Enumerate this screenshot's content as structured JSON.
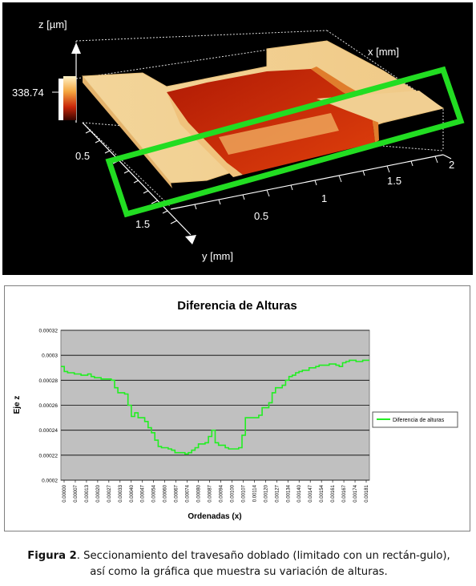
{
  "surface_plot": {
    "z_axis_label": "z [µm]",
    "x_axis_label": "x [mm]",
    "y_axis_label": "y [mm]",
    "colorbar_value": "338.74",
    "x_ticks": [
      "0.5",
      "1",
      "1.5",
      "2"
    ],
    "y_ticks": [
      "0.5",
      "1.5"
    ],
    "selection_color": "#22dd22"
  },
  "chart_data": {
    "type": "line",
    "title": "Diferencia de Alturas",
    "xlabel": "Ordenadas (x)",
    "ylabel": "Eje z",
    "ylim": [
      0.0002,
      0.00032
    ],
    "y_ticks": [
      "0.00032",
      "0.0003",
      "0.00028",
      "0.00026",
      "0.00024",
      "0.00022",
      "0.0002"
    ],
    "x_ticks": [
      "0.00000",
      "0.00007",
      "0.00013",
      "0.00020",
      "0.00027",
      "0.00033",
      "0.00040",
      "0.00047",
      "0.00054",
      "0.00060",
      "0.00067",
      "0.00074",
      "0.00080",
      "0.00087",
      "0.00094",
      "0.00100",
      "0.00107",
      "0.00114",
      "0.00120",
      "0.00127",
      "0.00134",
      "0.00140",
      "0.00147",
      "0.00154",
      "0.00161",
      "0.00167",
      "0.00174",
      "0.00181"
    ],
    "grid": true,
    "legend_position": "right",
    "series": [
      {
        "name": "Diferencia de alturas",
        "color": "#22ee22",
        "x": [
          0.0,
          2e-05,
          4e-05,
          6e-05,
          8e-05,
          0.0001,
          0.00012,
          0.00014,
          0.00016,
          0.00018,
          0.0002,
          0.00022,
          0.00024,
          0.00026,
          0.00028,
          0.0003,
          0.00032,
          0.00034,
          0.00036,
          0.00038,
          0.0004,
          0.00042,
          0.00044,
          0.00046,
          0.00048,
          0.0005,
          0.00052,
          0.00054,
          0.00056,
          0.00058,
          0.0006,
          0.00062,
          0.00064,
          0.00066,
          0.00068,
          0.0007,
          0.00072,
          0.00074,
          0.00076,
          0.00078,
          0.0008,
          0.00082,
          0.00084,
          0.00086,
          0.00088,
          0.0009,
          0.00092,
          0.00094,
          0.00096,
          0.00098,
          0.001,
          0.00102,
          0.00104,
          0.00106,
          0.00108,
          0.0011,
          0.00112,
          0.00114,
          0.00116,
          0.00118,
          0.0012,
          0.00122,
          0.00124,
          0.00126,
          0.00128,
          0.0013,
          0.00132,
          0.00134,
          0.00136,
          0.00138,
          0.0014,
          0.00142,
          0.00144,
          0.00146,
          0.00148,
          0.0015,
          0.00152,
          0.00154,
          0.00156,
          0.00158,
          0.0016,
          0.00162,
          0.00164,
          0.00166,
          0.00168,
          0.0017,
          0.00172,
          0.00174,
          0.00176,
          0.00178,
          0.0018,
          0.00182,
          0.00184
        ],
        "values": [
          0.000291,
          0.000287,
          0.000286,
          0.000286,
          0.000285,
          0.000285,
          0.000284,
          0.000284,
          0.000285,
          0.000283,
          0.000282,
          0.000282,
          0.000281,
          0.000281,
          0.000281,
          0.00028,
          0.000274,
          0.00027,
          0.00027,
          0.000269,
          0.00026,
          0.000251,
          0.000254,
          0.00025,
          0.00025,
          0.000247,
          0.000242,
          0.000238,
          0.000232,
          0.000227,
          0.000226,
          0.000226,
          0.000225,
          0.000224,
          0.000222,
          0.000222,
          0.000222,
          0.000221,
          0.000222,
          0.000224,
          0.000226,
          0.000229,
          0.000229,
          0.00023,
          0.000235,
          0.00024,
          0.00023,
          0.000228,
          0.000228,
          0.000226,
          0.000225,
          0.000225,
          0.000225,
          0.000226,
          0.000236,
          0.00025,
          0.00025,
          0.00025,
          0.00025,
          0.000252,
          0.000258,
          0.000258,
          0.000262,
          0.00027,
          0.000274,
          0.000274,
          0.000276,
          0.00028,
          0.000283,
          0.000284,
          0.000286,
          0.000287,
          0.000288,
          0.000288,
          0.00029,
          0.00029,
          0.000291,
          0.000292,
          0.000292,
          0.000292,
          0.000293,
          0.000293,
          0.000292,
          0.000291,
          0.000294,
          0.000295,
          0.000296,
          0.000296,
          0.000295,
          0.000295,
          0.000296,
          0.000296,
          0.000296
        ]
      }
    ]
  },
  "caption": {
    "label": "Figura 2",
    "text": ". Seccionamiento del travesaño doblado (limitado con un rectán-gulo), así como la gráfica que muestra su variación de alturas."
  }
}
